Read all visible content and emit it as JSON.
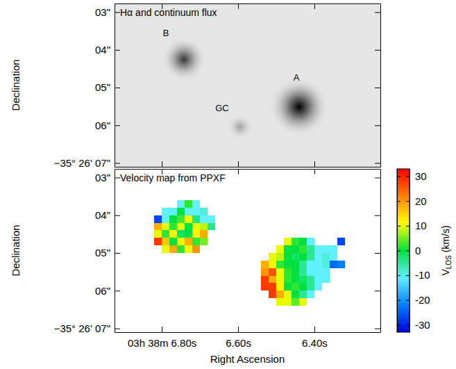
{
  "chart_data": {
    "type": "heatmap",
    "x_label": "Right Ascension",
    "y_label": "Declination",
    "xlim": [
      6.924,
      6.227
    ],
    "ylim": [
      2.77,
      7.1
    ],
    "xticks": [
      {
        "value": 6.8,
        "label": "03h 38m 6.80s"
      },
      {
        "value": 6.6,
        "label": "6.60s"
      },
      {
        "value": 6.4,
        "label": "6.40s"
      }
    ],
    "yticks": [
      {
        "value": 3,
        "label": "03\""
      },
      {
        "value": 4,
        "label": "04\""
      },
      {
        "value": 5,
        "label": "05\""
      },
      {
        "value": 6,
        "label": "06\""
      },
      {
        "value": 7,
        "label": "−35° 26' 07\""
      }
    ],
    "panels": [
      {
        "type": "image",
        "title": "Hα and continuum flux",
        "sources": [
          {
            "ra": 6.44,
            "dec": 5.51,
            "peak": 1.0,
            "fwhm": 0.8
          },
          {
            "ra": 6.742,
            "dec": 4.25,
            "peak": 0.75,
            "fwhm": 0.6
          },
          {
            "ra": 6.595,
            "dec": 6.04,
            "peak": 0.3,
            "fwhm": 0.35
          }
        ],
        "annotations": [
          {
            "text": "A",
            "x": 6.447,
            "y": 4.73
          },
          {
            "text": "B",
            "x": 6.789,
            "y": 3.56
          },
          {
            "text": "GC",
            "x": 6.642,
            "y": 5.55
          }
        ]
      },
      {
        "type": "heatmap",
        "title": "Velocity map from PPXF",
        "velocity_map": {
          "ra": [
            6.81,
            6.79,
            6.77,
            6.75,
            6.73,
            6.71,
            6.69,
            6.67,
            6.65,
            6.63,
            6.61,
            6.59,
            6.57,
            6.55,
            6.53,
            6.51,
            6.49,
            6.47,
            6.45,
            6.43,
            6.41,
            6.39,
            6.37,
            6.35,
            6.33
          ],
          "dec": [
            3.7,
            3.9,
            4.1,
            4.3,
            4.5,
            4.7,
            4.9,
            5.1,
            5.3,
            5.5,
            5.7,
            5.9,
            6.1,
            6.3
          ],
          "values": [
            [
              null,
              null,
              null,
              -11,
              2,
              -11,
              null,
              null,
              null,
              null,
              null,
              null,
              null,
              null,
              null,
              null,
              null,
              null,
              null,
              null,
              null,
              null,
              null,
              null,
              null
            ],
            [
              null,
              -11,
              -11,
              0,
              -11,
              -11,
              -9,
              null,
              null,
              null,
              null,
              null,
              null,
              null,
              null,
              null,
              null,
              null,
              null,
              null,
              null,
              null,
              null,
              null,
              null
            ],
            [
              -27,
              -11,
              0,
              3,
              10,
              -4,
              -11,
              -11,
              null,
              null,
              null,
              null,
              null,
              null,
              null,
              null,
              null,
              null,
              null,
              null,
              null,
              null,
              null,
              null,
              null
            ],
            [
              18,
              10,
              2,
              10,
              0,
              10,
              8,
              -4,
              null,
              null,
              null,
              null,
              null,
              null,
              null,
              null,
              null,
              null,
              null,
              null,
              null,
              null,
              null,
              null,
              null
            ],
            [
              10,
              2,
              12,
              -2,
              0,
              12,
              18,
              null,
              null,
              null,
              null,
              null,
              null,
              null,
              null,
              null,
              null,
              null,
              null,
              null,
              null,
              null,
              null,
              null,
              null
            ],
            [
              28,
              16,
              0,
              10,
              18,
              2,
              5,
              null,
              null,
              null,
              null,
              null,
              null,
              null,
              null,
              null,
              null,
              10,
              2,
              0,
              -11,
              null,
              null,
              null,
              -27
            ],
            [
              null,
              10,
              18,
              2,
              10,
              20,
              null,
              null,
              null,
              null,
              null,
              null,
              null,
              null,
              null,
              null,
              10,
              0,
              0,
              2,
              -5,
              -11,
              -11,
              -11,
              null
            ],
            [
              null,
              null,
              null,
              null,
              null,
              null,
              null,
              null,
              null,
              null,
              null,
              null,
              null,
              null,
              null,
              10,
              8,
              0,
              -2,
              0,
              -5,
              -11,
              -9,
              -11,
              null
            ],
            [
              null,
              null,
              null,
              null,
              null,
              null,
              null,
              null,
              null,
              null,
              null,
              null,
              null,
              null,
              18,
              12,
              2,
              0,
              0,
              -5,
              -11,
              -11,
              -9,
              -24,
              -22
            ],
            [
              null,
              null,
              null,
              null,
              null,
              null,
              null,
              null,
              null,
              null,
              null,
              null,
              null,
              null,
              20,
              26,
              10,
              2,
              0,
              -5,
              -11,
              -11,
              -11,
              null,
              null
            ],
            [
              null,
              null,
              null,
              null,
              null,
              null,
              null,
              null,
              null,
              null,
              null,
              null,
              null,
              null,
              28,
              18,
              10,
              2,
              0,
              -2,
              -5,
              -11,
              -11,
              null,
              null
            ],
            [
              null,
              null,
              null,
              null,
              null,
              null,
              null,
              null,
              null,
              null,
              null,
              null,
              null,
              null,
              28,
              28,
              12,
              0,
              2,
              0,
              -5,
              -11,
              null,
              null,
              null
            ],
            [
              null,
              null,
              null,
              null,
              null,
              null,
              null,
              null,
              null,
              null,
              null,
              null,
              null,
              null,
              null,
              28,
              18,
              10,
              0,
              -5,
              -11,
              null,
              null,
              null,
              null
            ],
            [
              null,
              null,
              null,
              null,
              null,
              null,
              null,
              null,
              null,
              null,
              null,
              null,
              null,
              null,
              null,
              null,
              10,
              10,
              4,
              10,
              null,
              null,
              null,
              null,
              null
            ]
          ]
        },
        "colorbar": {
          "label": [
            "V",
            "LOS",
            " (km/s)"
          ],
          "range": [
            -33,
            33
          ],
          "ticks": [
            -30,
            -20,
            -10,
            0,
            10,
            20,
            30
          ]
        }
      }
    ]
  }
}
